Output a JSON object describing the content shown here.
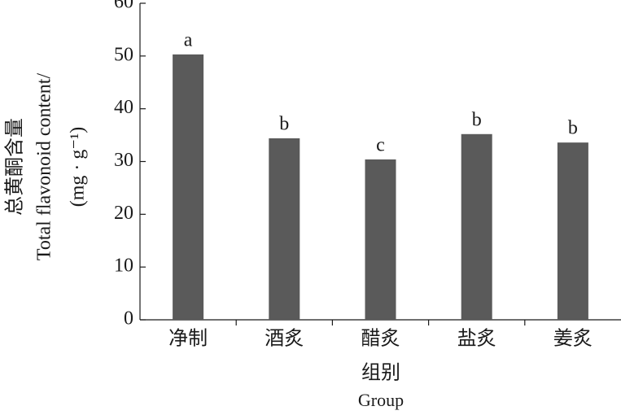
{
  "chart_data": {
    "type": "bar",
    "y_label": [
      "总黄酮含量",
      "Total flavonoid content/",
      "(mg · g⁻¹)"
    ],
    "x_label": "组别",
    "x_label_en": "Group",
    "categories": [
      "净制",
      "酒炙",
      "醋炙",
      "盐炙",
      "姜炙"
    ],
    "values": [
      50.3,
      34.4,
      30.4,
      35.2,
      33.6
    ],
    "annotations": [
      "a",
      "b",
      "c",
      "b",
      "b"
    ],
    "color": "#5a5a5a",
    "ylim": [
      0,
      60
    ],
    "yticks": [
      0,
      10,
      20,
      30,
      40,
      50,
      60
    ]
  }
}
